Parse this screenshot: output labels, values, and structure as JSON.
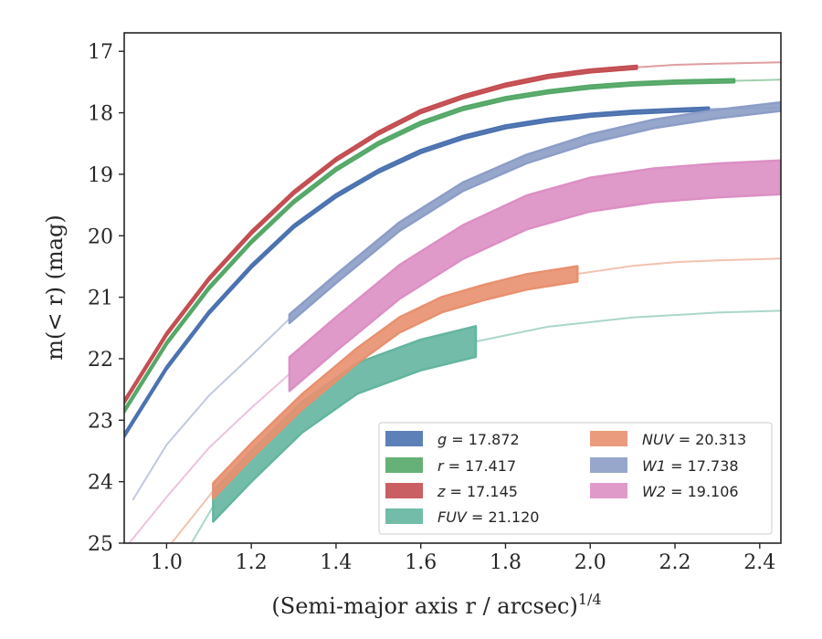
{
  "chart_data": {
    "type": "line",
    "xlabel": "(Semi-major axis r / arcsec)",
    "xlabel_sup": "1/4",
    "ylabel": "m(< r) (mag)",
    "xlim": [
      0.9,
      2.45
    ],
    "ylim": [
      25,
      16.7
    ],
    "y_inverted": true,
    "xticks": [
      "1.0",
      "1.2",
      "1.4",
      "1.6",
      "1.8",
      "2.0",
      "2.2",
      "2.4"
    ],
    "yticks": [
      "17",
      "18",
      "19",
      "20",
      "21",
      "22",
      "23",
      "24",
      "25"
    ],
    "grid": false,
    "legend_location": "lower right",
    "series": [
      {
        "name": "g = 17.872",
        "legend_var": "g",
        "legend_value": "17.872",
        "color": "#4c72b0",
        "data_x": [
          0.9,
          1.0,
          1.1,
          1.2,
          1.3,
          1.4,
          1.5,
          1.6,
          1.7,
          1.8,
          1.9,
          2.0,
          2.1,
          2.2,
          2.28
        ],
        "data_y": [
          23.25,
          22.15,
          21.25,
          20.5,
          19.85,
          19.35,
          18.95,
          18.63,
          18.4,
          18.23,
          18.12,
          18.04,
          17.99,
          17.96,
          17.94
        ],
        "data_band": 0.05,
        "extrap_x": [
          2.28,
          2.35,
          2.45
        ],
        "extrap_y": [
          17.94,
          17.93,
          17.92
        ]
      },
      {
        "name": "r = 17.417",
        "legend_var": "r",
        "legend_value": "17.417",
        "color": "#55a868",
        "data_x": [
          0.9,
          1.0,
          1.1,
          1.2,
          1.3,
          1.4,
          1.5,
          1.6,
          1.7,
          1.8,
          1.9,
          2.0,
          2.1,
          2.2,
          2.34
        ],
        "data_y": [
          22.85,
          21.75,
          20.85,
          20.1,
          19.45,
          18.92,
          18.5,
          18.17,
          17.93,
          17.77,
          17.66,
          17.58,
          17.53,
          17.5,
          17.48
        ],
        "data_band": 0.05,
        "extrap_x": [
          2.34,
          2.4,
          2.45
        ],
        "extrap_y": [
          17.48,
          17.47,
          17.46
        ]
      },
      {
        "name": "z = 17.145",
        "legend_var": "z",
        "legend_value": "17.145",
        "color": "#c44e52",
        "data_x": [
          0.9,
          1.0,
          1.1,
          1.2,
          1.3,
          1.4,
          1.5,
          1.6,
          1.7,
          1.8,
          1.9,
          2.0,
          2.11
        ],
        "data_y": [
          22.7,
          21.6,
          20.7,
          19.95,
          19.3,
          18.76,
          18.33,
          17.98,
          17.74,
          17.55,
          17.41,
          17.32,
          17.26
        ],
        "data_band": 0.05,
        "extrap_x": [
          2.11,
          2.2,
          2.3,
          2.45
        ],
        "extrap_y": [
          17.26,
          17.22,
          17.2,
          17.18
        ]
      },
      {
        "name": "FUV = 21.120",
        "legend_var": "FUV",
        "legend_value": "21.120",
        "color": "#64b5a0",
        "data_x": [
          1.11,
          1.2,
          1.32,
          1.45,
          1.6,
          1.73
        ],
        "data_y": [
          24.4,
          23.75,
          22.95,
          22.32,
          21.94,
          21.72
        ],
        "data_band": 0.5,
        "extrap_lead_x": [
          1.05,
          1.11
        ],
        "extrap_lead_y": [
          25.1,
          24.4
        ],
        "extrap_x": [
          1.73,
          1.9,
          2.1,
          2.3,
          2.45
        ],
        "extrap_y": [
          21.72,
          21.48,
          21.33,
          21.25,
          21.22
        ]
      },
      {
        "name": "NUV = 20.313",
        "legend_var": "NUV",
        "legend_value": "20.313",
        "color": "#e8906f",
        "data_x": [
          1.11,
          1.2,
          1.32,
          1.45,
          1.55,
          1.65,
          1.75,
          1.85,
          1.97
        ],
        "data_y": [
          24.15,
          23.5,
          22.7,
          21.95,
          21.45,
          21.12,
          20.92,
          20.75,
          20.62
        ],
        "data_band": 0.25,
        "extrap_lead_x": [
          1.0,
          1.11
        ],
        "extrap_lead_y": [
          25.1,
          24.15
        ],
        "extrap_x": [
          1.97,
          2.1,
          2.2,
          2.3,
          2.45
        ],
        "extrap_y": [
          20.62,
          20.49,
          20.43,
          20.4,
          20.37
        ]
      },
      {
        "name": "W1 = 17.738",
        "legend_var": "W1",
        "legend_value": "17.738",
        "color": "#8c9dc7",
        "data_x": [
          1.29,
          1.4,
          1.55,
          1.7,
          1.85,
          2.0,
          2.15,
          2.3,
          2.45
        ],
        "data_y": [
          21.35,
          20.7,
          19.85,
          19.2,
          18.75,
          18.42,
          18.18,
          18.02,
          17.9
        ],
        "data_band": 0.14,
        "extrap_lead_x": [
          0.92,
          1.0,
          1.1,
          1.2,
          1.29
        ],
        "extrap_lead_y": [
          24.3,
          23.4,
          22.6,
          21.95,
          21.35
        ]
      },
      {
        "name": "W2 = 19.106",
        "legend_var": "W2",
        "legend_value": "19.106",
        "color": "#dc8fc4",
        "data_x": [
          1.29,
          1.4,
          1.55,
          1.7,
          1.85,
          2.0,
          2.15,
          2.3,
          2.45
        ],
        "data_y": [
          22.25,
          21.6,
          20.75,
          20.1,
          19.62,
          19.33,
          19.18,
          19.1,
          19.05
        ],
        "data_band": 0.55,
        "extrap_lead_x": [
          0.9,
          1.0,
          1.1,
          1.2,
          1.29
        ],
        "extrap_lead_y": [
          25.1,
          24.25,
          23.45,
          22.8,
          22.25
        ]
      }
    ],
    "legend_columns": [
      [
        0,
        1,
        2,
        3
      ],
      [
        4,
        5,
        6
      ]
    ]
  }
}
